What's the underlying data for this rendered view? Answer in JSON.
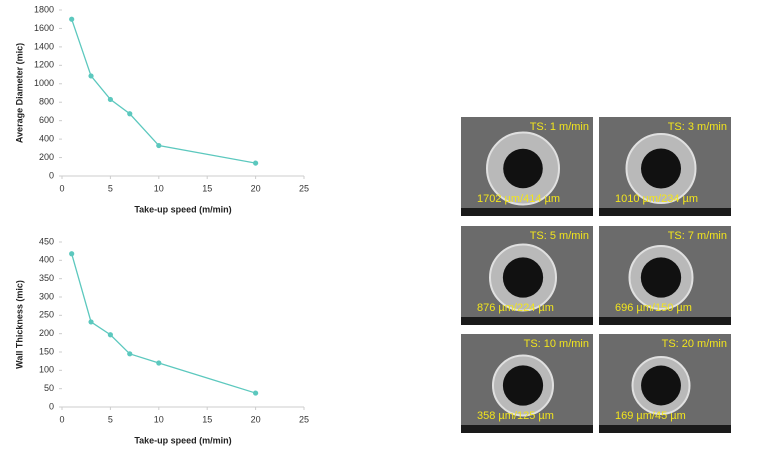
{
  "chart_data": [
    {
      "type": "line",
      "x_label": "Take-up speed (m/min)",
      "y_label": "Average Diameter (mic)",
      "x": [
        1,
        3,
        5,
        7,
        10,
        20
      ],
      "values": [
        1700,
        1085,
        830,
        675,
        330,
        140
      ],
      "color": "#5cc8be",
      "xlim": [
        0,
        25
      ],
      "xticks": [
        0,
        5,
        10,
        15,
        20,
        25
      ],
      "ylim": [
        0,
        1800
      ],
      "yticks": [
        0,
        200,
        400,
        600,
        800,
        1000,
        1200,
        1400,
        1600,
        1800
      ]
    },
    {
      "type": "line",
      "x_label": "Take-up speed (m/min)",
      "y_label": "Wall Thickness (mic)",
      "x": [
        1,
        3,
        5,
        7,
        10,
        20
      ],
      "values": [
        418,
        232,
        197,
        145,
        120,
        38
      ],
      "color": "#5cc8be",
      "xlim": [
        0,
        25
      ],
      "xticks": [
        0,
        5,
        10,
        15,
        20,
        25
      ],
      "ylim": [
        0,
        450
      ],
      "yticks": [
        0,
        50,
        100,
        150,
        200,
        250,
        300,
        350,
        400,
        450
      ]
    }
  ],
  "sem_images": [
    {
      "speed": "TS: 1 m/min",
      "dims": "1702 µm/414 µm"
    },
    {
      "speed": "TS: 3 m/min",
      "dims": "1010 µm/234 µm"
    },
    {
      "speed": "TS: 5 m/min",
      "dims": "876 µm/224 µm"
    },
    {
      "speed": "TS: 7 m/min",
      "dims": "696 µm/150 µm"
    },
    {
      "speed": "TS: 10 m/min",
      "dims": "358 µm/125 µm"
    },
    {
      "speed": "TS: 20 m/min",
      "dims": "169 µm/45 µm"
    }
  ]
}
